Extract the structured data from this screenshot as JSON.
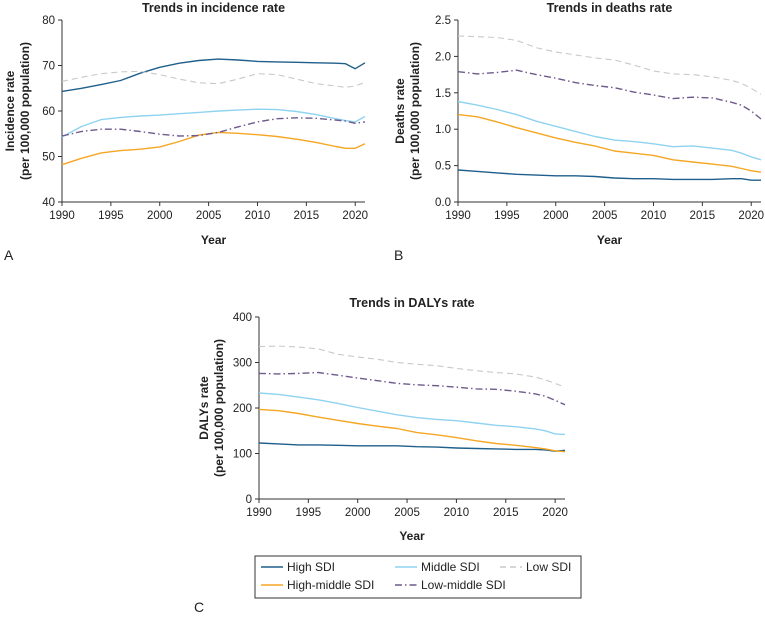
{
  "legend": {
    "title": "",
    "entries": [
      {
        "key": "high",
        "label": "High SDI",
        "color": "#1f5f8b",
        "dash": "solid"
      },
      {
        "key": "highmid",
        "label": "High-middle SDI",
        "color": "#f5a623",
        "dash": "solid"
      },
      {
        "key": "middle",
        "label": "Middle SDI",
        "color": "#8fd3f0",
        "dash": "solid"
      },
      {
        "key": "lowmid",
        "label": "Low-middle SDI",
        "color": "#6e5a8c",
        "dash": "dashdot"
      },
      {
        "key": "low",
        "label": "Low SDI",
        "color": "#c8c8c8",
        "dash": "dash"
      }
    ]
  },
  "chart_data": [
    {
      "type": "line",
      "panel_letter": "A",
      "title": "Trends in incidence rate",
      "xlabel": "Year",
      "ylabel": [
        "Incidence rate",
        "(per 100,000 population)"
      ],
      "xlim": [
        1990,
        2021
      ],
      "ylim": [
        40,
        80
      ],
      "xticks": [
        1990,
        1995,
        2000,
        2005,
        2010,
        2015,
        2020
      ],
      "yticks": [
        40,
        50,
        60,
        70,
        80
      ],
      "series": [
        {
          "name": "High SDI",
          "key": "high",
          "x": [
            1990,
            1992,
            1994,
            1996,
            1998,
            2000,
            2002,
            2004,
            2006,
            2008,
            2010,
            2012,
            2014,
            2016,
            2018,
            2019,
            2020,
            2021
          ],
          "y": [
            64.3,
            65.0,
            65.8,
            66.7,
            68.3,
            69.6,
            70.5,
            71.1,
            71.4,
            71.2,
            70.9,
            70.8,
            70.7,
            70.6,
            70.5,
            70.4,
            69.3,
            70.6
          ]
        },
        {
          "name": "High-middle SDI",
          "key": "highmid",
          "x": [
            1990,
            1992,
            1994,
            1996,
            1998,
            2000,
            2002,
            2004,
            2006,
            2008,
            2010,
            2012,
            2014,
            2016,
            2018,
            2019,
            2020,
            2021
          ],
          "y": [
            48.2,
            49.6,
            50.8,
            51.3,
            51.6,
            52.1,
            53.3,
            54.7,
            55.3,
            55.1,
            54.8,
            54.4,
            53.8,
            53.1,
            52.2,
            51.8,
            51.8,
            52.8
          ]
        },
        {
          "name": "Middle SDI",
          "key": "middle",
          "x": [
            1990,
            1992,
            1994,
            1996,
            1998,
            2000,
            2002,
            2004,
            2006,
            2008,
            2010,
            2012,
            2014,
            2016,
            2018,
            2019,
            2020,
            2021
          ],
          "y": [
            54.3,
            56.6,
            58.1,
            58.6,
            58.9,
            59.1,
            59.4,
            59.7,
            60.0,
            60.2,
            60.4,
            60.3,
            59.9,
            59.2,
            58.3,
            57.9,
            57.6,
            58.8
          ]
        },
        {
          "name": "Low-middle SDI",
          "key": "lowmid",
          "x": [
            1990,
            1992,
            1994,
            1996,
            1998,
            2000,
            2002,
            2004,
            2006,
            2008,
            2010,
            2012,
            2014,
            2016,
            2018,
            2019,
            2020,
            2021
          ],
          "y": [
            54.5,
            55.5,
            56.0,
            56.0,
            55.5,
            54.9,
            54.5,
            54.6,
            55.3,
            56.5,
            57.6,
            58.3,
            58.5,
            58.4,
            58.0,
            57.8,
            57.3,
            57.6
          ]
        },
        {
          "name": "Low SDI",
          "key": "low",
          "x": [
            1990,
            1992,
            1994,
            1996,
            1998,
            2000,
            2002,
            2004,
            2006,
            2008,
            2010,
            2012,
            2014,
            2016,
            2018,
            2019,
            2020,
            2021
          ],
          "y": [
            66.5,
            67.4,
            68.2,
            68.6,
            68.7,
            68.0,
            67.0,
            66.2,
            66.0,
            67.0,
            68.2,
            68.0,
            67.0,
            66.0,
            65.5,
            65.2,
            65.5,
            66.3
          ]
        }
      ]
    },
    {
      "type": "line",
      "panel_letter": "B",
      "title": "Trends in deaths rate",
      "xlabel": "Year",
      "ylabel": [
        "Deaths rate",
        "(per 100,000 population)"
      ],
      "xlim": [
        1990,
        2021
      ],
      "ylim": [
        0,
        2.5
      ],
      "xticks": [
        1990,
        1995,
        2000,
        2005,
        2010,
        2015,
        2020
      ],
      "yticks": [
        0.0,
        0.5,
        1.0,
        1.5,
        2.0,
        2.5
      ],
      "ytick_labels": [
        "0.0",
        "0.5",
        "1.0",
        "1.5",
        "2.0",
        "2.5"
      ],
      "series": [
        {
          "name": "High SDI",
          "key": "high",
          "x": [
            1990,
            1992,
            1994,
            1996,
            1998,
            2000,
            2002,
            2004,
            2006,
            2008,
            2010,
            2012,
            2014,
            2016,
            2018,
            2019,
            2020,
            2021
          ],
          "y": [
            0.44,
            0.42,
            0.4,
            0.38,
            0.37,
            0.36,
            0.36,
            0.35,
            0.33,
            0.32,
            0.32,
            0.31,
            0.31,
            0.31,
            0.32,
            0.32,
            0.3,
            0.3
          ]
        },
        {
          "name": "High-middle SDI",
          "key": "highmid",
          "x": [
            1990,
            1992,
            1994,
            1996,
            1998,
            2000,
            2002,
            2004,
            2006,
            2008,
            2010,
            2012,
            2014,
            2016,
            2018,
            2019,
            2020,
            2021
          ],
          "y": [
            1.2,
            1.17,
            1.1,
            1.02,
            0.95,
            0.88,
            0.82,
            0.77,
            0.7,
            0.67,
            0.64,
            0.58,
            0.55,
            0.52,
            0.49,
            0.46,
            0.43,
            0.41
          ]
        },
        {
          "name": "Middle SDI",
          "key": "middle",
          "x": [
            1990,
            1992,
            1994,
            1996,
            1998,
            2000,
            2002,
            2004,
            2006,
            2008,
            2010,
            2012,
            2014,
            2016,
            2018,
            2019,
            2020,
            2021
          ],
          "y": [
            1.38,
            1.33,
            1.27,
            1.2,
            1.11,
            1.04,
            0.97,
            0.9,
            0.85,
            0.83,
            0.8,
            0.76,
            0.77,
            0.74,
            0.71,
            0.67,
            0.62,
            0.58
          ]
        },
        {
          "name": "Low-middle SDI",
          "key": "lowmid",
          "x": [
            1990,
            1992,
            1994,
            1996,
            1998,
            2000,
            2002,
            2004,
            2006,
            2008,
            2010,
            2012,
            2014,
            2016,
            2018,
            2019,
            2020,
            2021
          ],
          "y": [
            1.79,
            1.76,
            1.78,
            1.81,
            1.75,
            1.7,
            1.64,
            1.6,
            1.57,
            1.51,
            1.47,
            1.42,
            1.44,
            1.43,
            1.37,
            1.33,
            1.25,
            1.14
          ]
        },
        {
          "name": "Low SDI",
          "key": "low",
          "x": [
            1990,
            1992,
            1994,
            1996,
            1998,
            2000,
            2002,
            2004,
            2006,
            2008,
            2010,
            2012,
            2014,
            2016,
            2018,
            2019,
            2020,
            2021
          ],
          "y": [
            2.28,
            2.27,
            2.26,
            2.22,
            2.12,
            2.06,
            2.02,
            1.98,
            1.95,
            1.88,
            1.8,
            1.76,
            1.75,
            1.72,
            1.67,
            1.63,
            1.56,
            1.48
          ]
        }
      ]
    },
    {
      "type": "line",
      "panel_letter": "C",
      "title": "Trends in DALYs rate",
      "xlabel": "Year",
      "ylabel": [
        "DALYs rate",
        "(per 100,000 population)"
      ],
      "xlim": [
        1990,
        2021
      ],
      "ylim": [
        0,
        400
      ],
      "xticks": [
        1990,
        1995,
        2000,
        2005,
        2010,
        2015,
        2020
      ],
      "yticks": [
        0,
        100,
        200,
        300,
        400
      ],
      "series": [
        {
          "name": "High SDI",
          "key": "high",
          "x": [
            1990,
            1992,
            1994,
            1996,
            1998,
            2000,
            2002,
            2004,
            2006,
            2008,
            2010,
            2012,
            2014,
            2016,
            2018,
            2019,
            2020,
            2021
          ],
          "y": [
            123,
            121,
            119,
            119,
            118,
            117,
            117,
            117,
            115,
            114,
            112,
            111,
            110,
            109,
            109,
            108,
            105,
            107
          ]
        },
        {
          "name": "High-middle SDI",
          "key": "highmid",
          "x": [
            1990,
            1992,
            1994,
            1996,
            1998,
            2000,
            2002,
            2004,
            2006,
            2008,
            2010,
            2012,
            2014,
            2016,
            2018,
            2019,
            2020,
            2021
          ],
          "y": [
            197,
            194,
            188,
            180,
            173,
            166,
            160,
            155,
            146,
            141,
            135,
            128,
            122,
            118,
            113,
            110,
            106,
            104
          ]
        },
        {
          "name": "Middle SDI",
          "key": "middle",
          "x": [
            1990,
            1992,
            1994,
            1996,
            1998,
            2000,
            2002,
            2004,
            2006,
            2008,
            2010,
            2012,
            2014,
            2016,
            2018,
            2019,
            2020,
            2021
          ],
          "y": [
            233,
            230,
            224,
            218,
            210,
            201,
            193,
            185,
            179,
            175,
            172,
            167,
            162,
            159,
            154,
            150,
            143,
            142
          ]
        },
        {
          "name": "Low-middle SDI",
          "key": "lowmid",
          "x": [
            1990,
            1992,
            1994,
            1996,
            1998,
            2000,
            2002,
            2004,
            2006,
            2008,
            2010,
            2012,
            2014,
            2016,
            2018,
            2019,
            2020,
            2021
          ],
          "y": [
            276,
            275,
            276,
            278,
            272,
            266,
            260,
            254,
            251,
            249,
            246,
            242,
            241,
            237,
            231,
            226,
            217,
            207
          ]
        },
        {
          "name": "Low SDI",
          "key": "low",
          "x": [
            1990,
            1992,
            1994,
            1996,
            1998,
            2000,
            2002,
            2004,
            2006,
            2008,
            2010,
            2012,
            2014,
            2016,
            2018,
            2019,
            2020,
            2021
          ],
          "y": [
            335,
            336,
            334,
            330,
            318,
            312,
            307,
            300,
            296,
            293,
            287,
            282,
            278,
            275,
            268,
            262,
            254,
            246
          ]
        }
      ]
    }
  ]
}
